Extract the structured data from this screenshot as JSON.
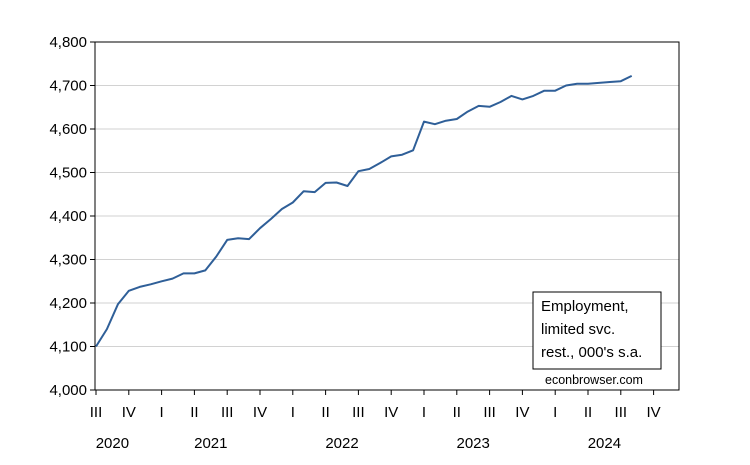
{
  "chart_data": {
    "type": "line",
    "title": "",
    "xlabel": "",
    "ylabel": "",
    "ylim": [
      4000,
      4800
    ],
    "yticks": [
      "4,000",
      "4,100",
      "4,200",
      "4,300",
      "4,400",
      "4,500",
      "4,600",
      "4,700",
      "4,800"
    ],
    "grid": "horizontal",
    "legend_lines": [
      "Employment,",
      "limited svc.",
      "rest., 000's s.a."
    ],
    "legend_position": "bottom-right",
    "watermark": "econbrowser.com",
    "line_color": "#2f5f98",
    "quarter_ticks": [
      "III",
      "IV",
      "I",
      "II",
      "III",
      "IV",
      "I",
      "II",
      "III",
      "IV",
      "I",
      "II",
      "III",
      "IV",
      "I",
      "II",
      "III",
      "IV"
    ],
    "year_labels": [
      {
        "label": "2020",
        "start_quarter": 0,
        "span": 2
      },
      {
        "label": "2021",
        "start_quarter": 2,
        "span": 4
      },
      {
        "label": "2022",
        "start_quarter": 6,
        "span": 4
      },
      {
        "label": "2023",
        "start_quarter": 10,
        "span": 4
      },
      {
        "label": "2024",
        "start_quarter": 14,
        "span": 4
      }
    ],
    "x_start": "2020-07",
    "series": [
      {
        "values": [
          4100,
          4140,
          4197,
          4228,
          4237,
          4243,
          4250,
          4256,
          4268,
          4268,
          4275,
          4307,
          4345,
          4349,
          4347,
          4372,
          4393,
          4416,
          4431,
          4457,
          4455,
          4476,
          4477,
          4469,
          4503,
          4508,
          4522,
          4537,
          4541,
          4551,
          4617,
          4611,
          4619,
          4623,
          4640,
          4653,
          4651,
          4662,
          4676,
          4668,
          4676,
          4688,
          4688,
          4700,
          4704,
          4704,
          4706,
          4708,
          4710,
          4722
        ]
      }
    ]
  }
}
